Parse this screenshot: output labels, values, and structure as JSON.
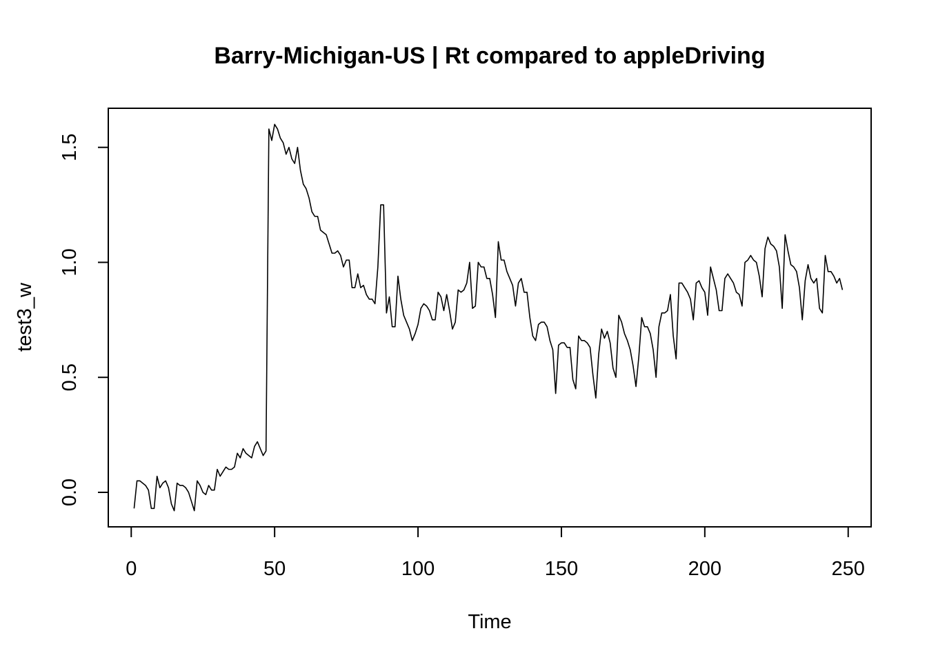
{
  "chart_data": {
    "type": "line",
    "title": "Barry-Michigan-US | Rt compared to appleDriving",
    "xlabel": "Time",
    "ylabel": "test3_w",
    "xlim": [
      -8,
      258
    ],
    "ylim": [
      -0.15,
      1.67
    ],
    "x_ticks": [
      0,
      50,
      100,
      150,
      200,
      250
    ],
    "y_ticks": [
      0.0,
      0.5,
      1.0,
      1.5
    ],
    "x_tick_labels": [
      "0",
      "50",
      "100",
      "150",
      "200",
      "250"
    ],
    "y_tick_labels": [
      "0.0",
      "0.5",
      "1.0",
      "1.5"
    ],
    "grid": false,
    "series": [
      {
        "color": "#000000",
        "x_start": 1,
        "values": [
          -0.07,
          0.05,
          0.05,
          0.04,
          0.03,
          0.01,
          -0.07,
          -0.07,
          0.07,
          0.02,
          0.04,
          0.05,
          0.02,
          -0.05,
          -0.08,
          0.04,
          0.03,
          0.03,
          0.02,
          0.0,
          -0.04,
          -0.08,
          0.05,
          0.03,
          0.0,
          -0.01,
          0.03,
          0.01,
          0.01,
          0.1,
          0.07,
          0.09,
          0.11,
          0.1,
          0.1,
          0.11,
          0.17,
          0.15,
          0.19,
          0.17,
          0.16,
          0.15,
          0.2,
          0.22,
          0.19,
          0.16,
          0.18,
          1.58,
          1.53,
          1.6,
          1.58,
          1.54,
          1.52,
          1.47,
          1.5,
          1.45,
          1.43,
          1.5,
          1.4,
          1.34,
          1.32,
          1.28,
          1.22,
          1.2,
          1.2,
          1.14,
          1.13,
          1.12,
          1.08,
          1.04,
          1.04,
          1.05,
          1.03,
          0.98,
          1.01,
          1.01,
          0.89,
          0.89,
          0.95,
          0.89,
          0.9,
          0.86,
          0.84,
          0.84,
          0.82,
          0.98,
          1.25,
          1.25,
          0.78,
          0.85,
          0.72,
          0.72,
          0.94,
          0.84,
          0.77,
          0.74,
          0.71,
          0.66,
          0.69,
          0.73,
          0.8,
          0.82,
          0.81,
          0.79,
          0.75,
          0.75,
          0.87,
          0.85,
          0.79,
          0.86,
          0.79,
          0.71,
          0.74,
          0.88,
          0.87,
          0.88,
          0.91,
          1.0,
          0.8,
          0.81,
          1.0,
          0.98,
          0.98,
          0.93,
          0.93,
          0.86,
          0.76,
          1.09,
          1.01,
          1.01,
          0.96,
          0.93,
          0.9,
          0.81,
          0.91,
          0.93,
          0.87,
          0.87,
          0.76,
          0.68,
          0.66,
          0.73,
          0.74,
          0.74,
          0.72,
          0.66,
          0.62,
          0.43,
          0.64,
          0.65,
          0.65,
          0.63,
          0.63,
          0.49,
          0.45,
          0.68,
          0.66,
          0.66,
          0.65,
          0.63,
          0.51,
          0.41,
          0.6,
          0.71,
          0.67,
          0.7,
          0.65,
          0.54,
          0.5,
          0.77,
          0.74,
          0.69,
          0.66,
          0.62,
          0.55,
          0.46,
          0.59,
          0.76,
          0.72,
          0.72,
          0.69,
          0.62,
          0.5,
          0.72,
          0.78,
          0.78,
          0.79,
          0.86,
          0.68,
          0.58,
          0.91,
          0.91,
          0.89,
          0.87,
          0.84,
          0.75,
          0.91,
          0.92,
          0.89,
          0.87,
          0.77,
          0.98,
          0.93,
          0.88,
          0.79,
          0.79,
          0.93,
          0.95,
          0.93,
          0.91,
          0.87,
          0.86,
          0.81,
          1.0,
          1.01,
          1.03,
          1.01,
          1.0,
          0.94,
          0.85,
          1.06,
          1.11,
          1.08,
          1.07,
          1.05,
          0.98,
          0.8,
          1.12,
          1.05,
          0.99,
          0.98,
          0.96,
          0.89,
          0.75,
          0.92,
          0.99,
          0.93,
          0.91,
          0.93,
          0.8,
          0.78,
          1.03,
          0.96,
          0.96,
          0.94,
          0.91,
          0.93,
          0.88
        ]
      }
    ]
  }
}
